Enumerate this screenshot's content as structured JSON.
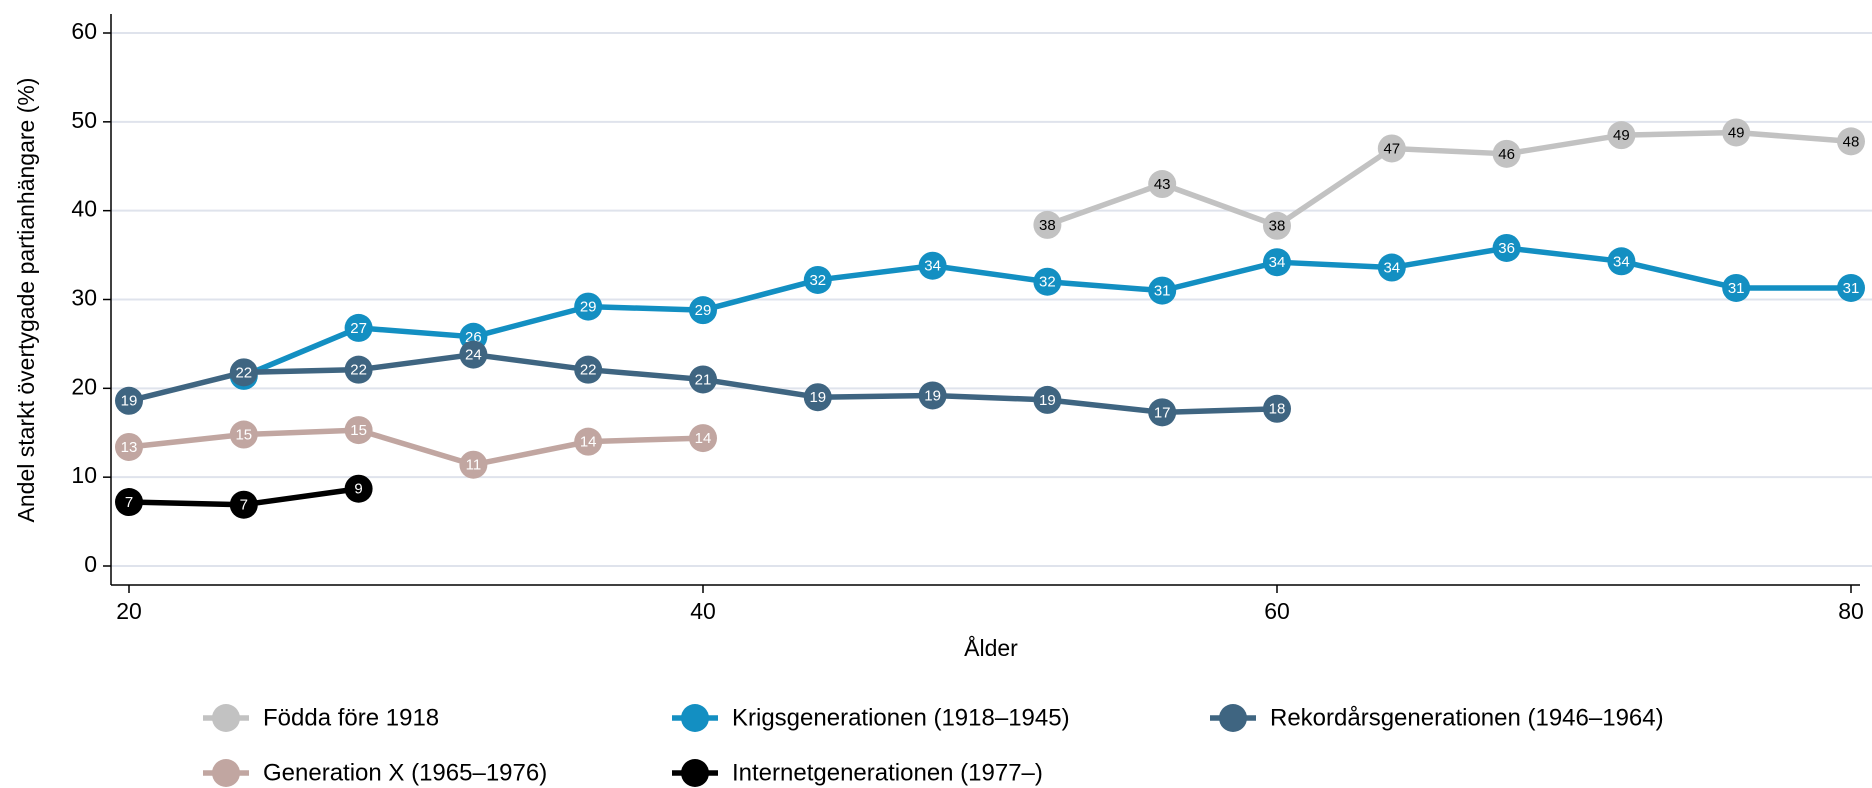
{
  "chart_data": {
    "type": "line",
    "xlabel": "Ålder",
    "ylabel": "Andel starkt övertygade partianhängare (%)",
    "xlim": [
      20,
      80
    ],
    "xticks": [
      20,
      40,
      60,
      80
    ],
    "ylim": [
      0,
      60
    ],
    "yticks": [
      0,
      10,
      20,
      30,
      40,
      50,
      60
    ],
    "grid": true,
    "series": [
      {
        "name": "Födda före 1918",
        "color": "#c2c2c2",
        "label_color": "#000000",
        "x": [
          52,
          56,
          60,
          64,
          68,
          72,
          76,
          80
        ],
        "values": [
          38.4,
          43,
          38.3,
          47,
          46.4,
          48.5,
          48.8,
          47.8
        ],
        "value_labels": [
          "38",
          "43",
          "38",
          "47",
          "46",
          "49",
          "49",
          "48"
        ]
      },
      {
        "name": "Krigsgenerationen (1918–1945)",
        "color": "#138fc2",
        "label_color": "#ffffff",
        "x": [
          24,
          28,
          32,
          36,
          40,
          44,
          48,
          52,
          56,
          60,
          64,
          68,
          72,
          76,
          80
        ],
        "values": [
          21.4,
          26.8,
          25.8,
          29.2,
          28.8,
          32.2,
          33.8,
          32,
          31,
          34.2,
          33.6,
          35.8,
          34.3,
          31.3,
          31.3
        ],
        "value_labels": [
          "21",
          "27",
          "26",
          "29",
          "29",
          "32",
          "34",
          "32",
          "31",
          "34",
          "34",
          "36",
          "34",
          "31",
          "31"
        ]
      },
      {
        "name": "Rekordårsgenerationen (1946–1964)",
        "color": "#3f6581",
        "label_color": "#ffffff",
        "x": [
          20,
          24,
          28,
          32,
          36,
          40,
          44,
          48,
          52,
          56,
          60
        ],
        "values": [
          18.6,
          21.8,
          22.1,
          23.8,
          22.1,
          21,
          19,
          19.2,
          18.7,
          17.3,
          17.7
        ],
        "value_labels": [
          "19",
          "22",
          "22",
          "24",
          "22",
          "21",
          "19",
          "19",
          "19",
          "17",
          "18"
        ]
      },
      {
        "name": "Generation X (1965–1976)",
        "color": "#c1a6a1",
        "label_color": "#ffffff",
        "x": [
          20,
          24,
          28,
          32,
          36,
          40
        ],
        "values": [
          13.4,
          14.8,
          15.3,
          11.4,
          14,
          14.4
        ],
        "value_labels": [
          "13",
          "15",
          "15",
          "11",
          "14",
          "14"
        ]
      },
      {
        "name": "Internetgenerationen (1977–)",
        "color": "#000000",
        "label_color": "#ffffff",
        "x": [
          20,
          24,
          28
        ],
        "values": [
          7.2,
          6.9,
          8.7
        ],
        "value_labels": [
          "7",
          "7",
          "9"
        ]
      }
    ]
  }
}
